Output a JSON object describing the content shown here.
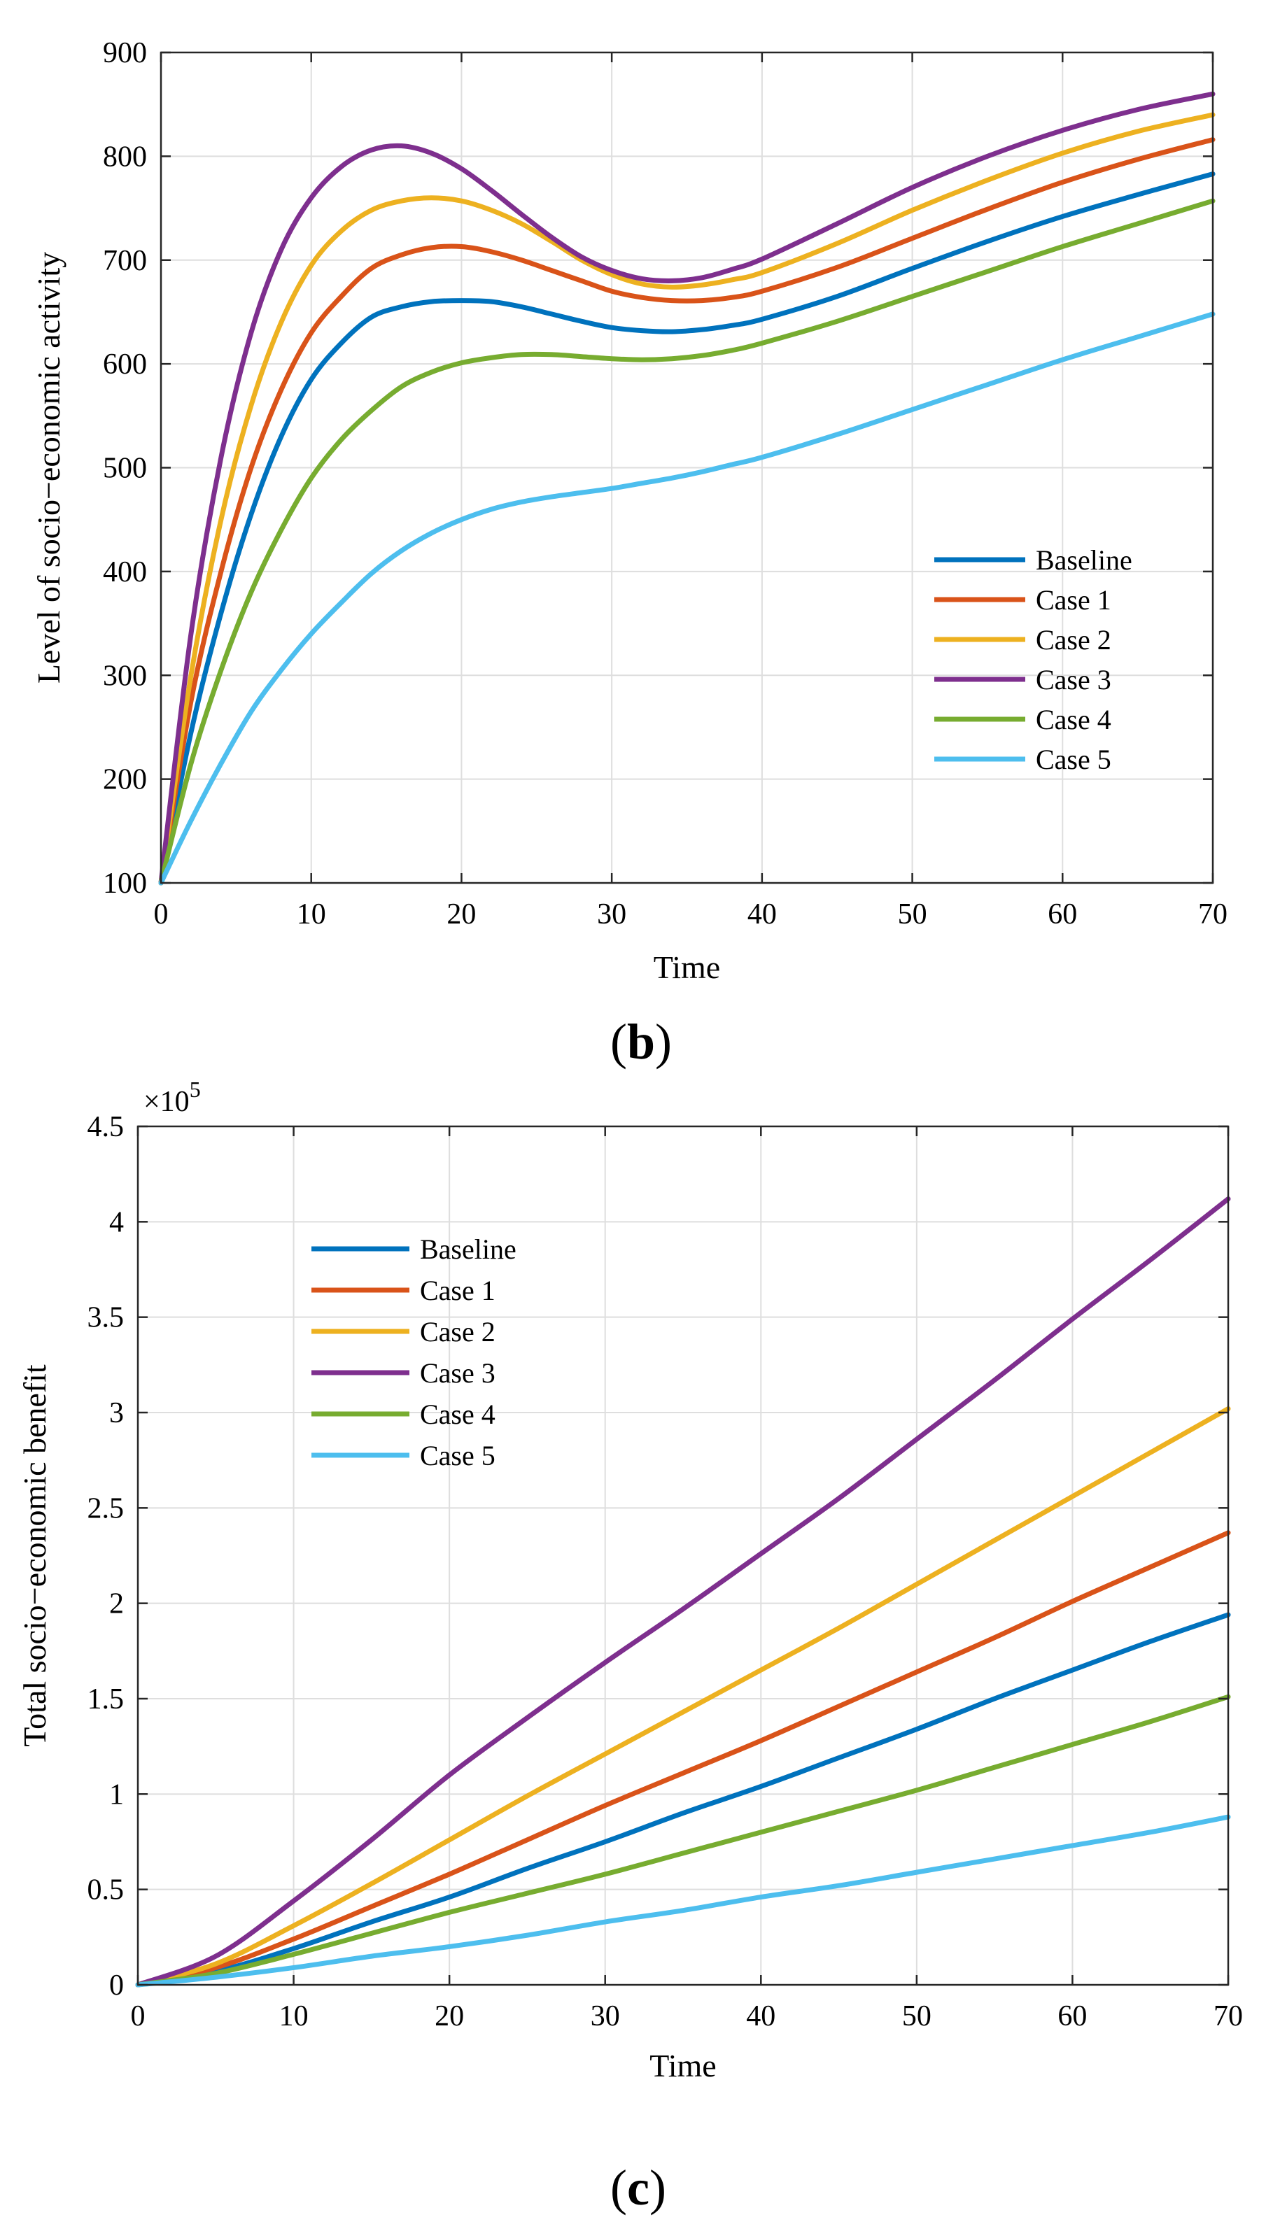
{
  "chart_data": [
    {
      "id": "b",
      "type": "line",
      "panel_label": "b",
      "xlabel": "Time",
      "ylabel": "Level of socio−economic activity",
      "xlim": [
        0,
        70
      ],
      "ylim": [
        100,
        900
      ],
      "xticks": [
        0,
        10,
        20,
        30,
        40,
        50,
        60,
        70
      ],
      "yticks": [
        100,
        200,
        300,
        400,
        500,
        600,
        700,
        800,
        900
      ],
      "grid": true,
      "legend_position": "right",
      "exponent_label": "",
      "series": [
        {
          "name": "Baseline",
          "color": "#0072BD",
          "x": [
            0,
            2,
            4,
            6,
            8,
            10,
            12,
            14,
            16,
            18,
            20,
            22,
            24,
            26,
            28,
            30,
            32,
            34,
            36,
            38,
            40,
            45,
            50,
            55,
            60,
            65,
            70
          ],
          "y": [
            100,
            245,
            360,
            455,
            530,
            585,
            620,
            645,
            655,
            660,
            661,
            660,
            655,
            648,
            641,
            635,
            632,
            631,
            633,
            637,
            643,
            665,
            692,
            718,
            742,
            763,
            783
          ]
        },
        {
          "name": "Case 1",
          "color": "#D95319",
          "x": [
            0,
            2,
            4,
            6,
            8,
            10,
            12,
            14,
            16,
            18,
            20,
            22,
            24,
            26,
            28,
            30,
            32,
            34,
            36,
            38,
            40,
            45,
            50,
            55,
            60,
            65,
            70
          ],
          "y": [
            100,
            275,
            400,
            500,
            575,
            630,
            665,
            692,
            705,
            712,
            713,
            708,
            700,
            690,
            680,
            670,
            664,
            661,
            661,
            664,
            670,
            693,
            721,
            749,
            775,
            797,
            816
          ]
        },
        {
          "name": "Case 2",
          "color": "#EDB120",
          "x": [
            0,
            2,
            4,
            6,
            8,
            10,
            12,
            14,
            16,
            18,
            20,
            22,
            24,
            26,
            28,
            30,
            32,
            34,
            36,
            38,
            40,
            45,
            50,
            55,
            60,
            65,
            70
          ],
          "y": [
            100,
            300,
            450,
            560,
            640,
            695,
            728,
            748,
            757,
            760,
            757,
            748,
            735,
            718,
            700,
            686,
            677,
            674,
            676,
            681,
            688,
            716,
            748,
            777,
            803,
            824,
            840
          ]
        },
        {
          "name": "Case 3",
          "color": "#7E2F8E",
          "x": [
            0,
            2,
            4,
            6,
            8,
            10,
            12,
            14,
            16,
            18,
            20,
            22,
            24,
            26,
            28,
            30,
            32,
            34,
            36,
            38,
            40,
            45,
            50,
            55,
            60,
            65,
            70
          ],
          "y": [
            100,
            340,
            510,
            630,
            710,
            760,
            790,
            806,
            810,
            803,
            788,
            767,
            744,
            722,
            703,
            690,
            682,
            680,
            683,
            691,
            701,
            735,
            770,
            800,
            825,
            845,
            860
          ]
        },
        {
          "name": "Case 4",
          "color": "#77AC30",
          "x": [
            0,
            2,
            4,
            6,
            8,
            10,
            12,
            14,
            16,
            18,
            20,
            22,
            24,
            26,
            28,
            30,
            32,
            34,
            36,
            38,
            40,
            45,
            50,
            55,
            60,
            65,
            70
          ],
          "y": [
            100,
            215,
            305,
            380,
            440,
            490,
            527,
            555,
            578,
            592,
            601,
            606,
            609,
            609,
            607,
            605,
            604,
            605,
            608,
            613,
            620,
            641,
            665,
            689,
            713,
            735,
            757
          ]
        },
        {
          "name": "Case 5",
          "color": "#4DBEEE",
          "x": [
            0,
            2,
            4,
            6,
            8,
            10,
            12,
            14,
            16,
            18,
            20,
            22,
            24,
            26,
            28,
            30,
            32,
            34,
            36,
            38,
            40,
            45,
            50,
            55,
            60,
            65,
            70
          ],
          "y": [
            100,
            160,
            215,
            265,
            305,
            340,
            370,
            398,
            420,
            437,
            450,
            460,
            467,
            472,
            476,
            480,
            485,
            490,
            496,
            503,
            510,
            532,
            556,
            580,
            604,
            626,
            648
          ]
        }
      ]
    },
    {
      "id": "c",
      "type": "line",
      "panel_label": "c",
      "xlabel": "Time",
      "ylabel": "Total socio−economic benefit",
      "xlim": [
        0,
        70
      ],
      "ylim": [
        0,
        4.5
      ],
      "xticks": [
        0,
        10,
        20,
        30,
        40,
        50,
        60,
        70
      ],
      "yticks": [
        0,
        0.5,
        1,
        1.5,
        2,
        2.5,
        3,
        3.5,
        4,
        4.5
      ],
      "ytick_labels": [
        "0",
        "0.5",
        "1",
        "1.5",
        "2",
        "2.5",
        "3",
        "3.5",
        "4",
        "4.5"
      ],
      "grid": true,
      "legend_position": "upper-left",
      "exponent_label": "×10",
      "exponent_power": "5",
      "y_unit_multiplier": 100000,
      "series": [
        {
          "name": "Baseline",
          "color": "#0072BD",
          "x": [
            0,
            5,
            10,
            15,
            20,
            25,
            30,
            35,
            40,
            45,
            50,
            55,
            60,
            65,
            70
          ],
          "y": [
            0,
            0.07,
            0.19,
            0.33,
            0.46,
            0.61,
            0.75,
            0.9,
            1.04,
            1.19,
            1.34,
            1.5,
            1.65,
            1.8,
            1.94
          ]
        },
        {
          "name": "Case 1",
          "color": "#D95319",
          "x": [
            0,
            5,
            10,
            15,
            20,
            25,
            30,
            35,
            40,
            45,
            50,
            55,
            60,
            65,
            70
          ],
          "y": [
            0,
            0.09,
            0.24,
            0.41,
            0.58,
            0.76,
            0.94,
            1.11,
            1.28,
            1.46,
            1.64,
            1.82,
            2.01,
            2.19,
            2.37
          ]
        },
        {
          "name": "Case 2",
          "color": "#EDB120",
          "x": [
            0,
            5,
            10,
            15,
            20,
            25,
            30,
            35,
            40,
            45,
            50,
            55,
            60,
            65,
            70
          ],
          "y": [
            0,
            0.11,
            0.31,
            0.53,
            0.76,
            0.99,
            1.21,
            1.43,
            1.65,
            1.87,
            2.1,
            2.33,
            2.56,
            2.79,
            3.02
          ]
        },
        {
          "name": "Case 3",
          "color": "#7E2F8E",
          "x": [
            0,
            5,
            10,
            15,
            20,
            25,
            30,
            35,
            40,
            45,
            50,
            55,
            60,
            65,
            70
          ],
          "y": [
            0,
            0.15,
            0.44,
            0.76,
            1.1,
            1.4,
            1.69,
            1.97,
            2.26,
            2.55,
            2.86,
            3.17,
            3.49,
            3.8,
            4.12
          ]
        },
        {
          "name": "Case 4",
          "color": "#77AC30",
          "x": [
            0,
            5,
            10,
            15,
            20,
            25,
            30,
            35,
            40,
            45,
            50,
            55,
            60,
            65,
            70
          ],
          "y": [
            0,
            0.06,
            0.16,
            0.27,
            0.38,
            0.48,
            0.58,
            0.69,
            0.8,
            0.91,
            1.02,
            1.14,
            1.26,
            1.38,
            1.51
          ]
        },
        {
          "name": "Case 5",
          "color": "#4DBEEE",
          "x": [
            0,
            5,
            10,
            15,
            20,
            25,
            30,
            35,
            40,
            45,
            50,
            55,
            60,
            65,
            70
          ],
          "y": [
            0,
            0.04,
            0.09,
            0.15,
            0.2,
            0.26,
            0.33,
            0.39,
            0.46,
            0.52,
            0.59,
            0.66,
            0.73,
            0.8,
            0.88
          ]
        }
      ]
    }
  ]
}
